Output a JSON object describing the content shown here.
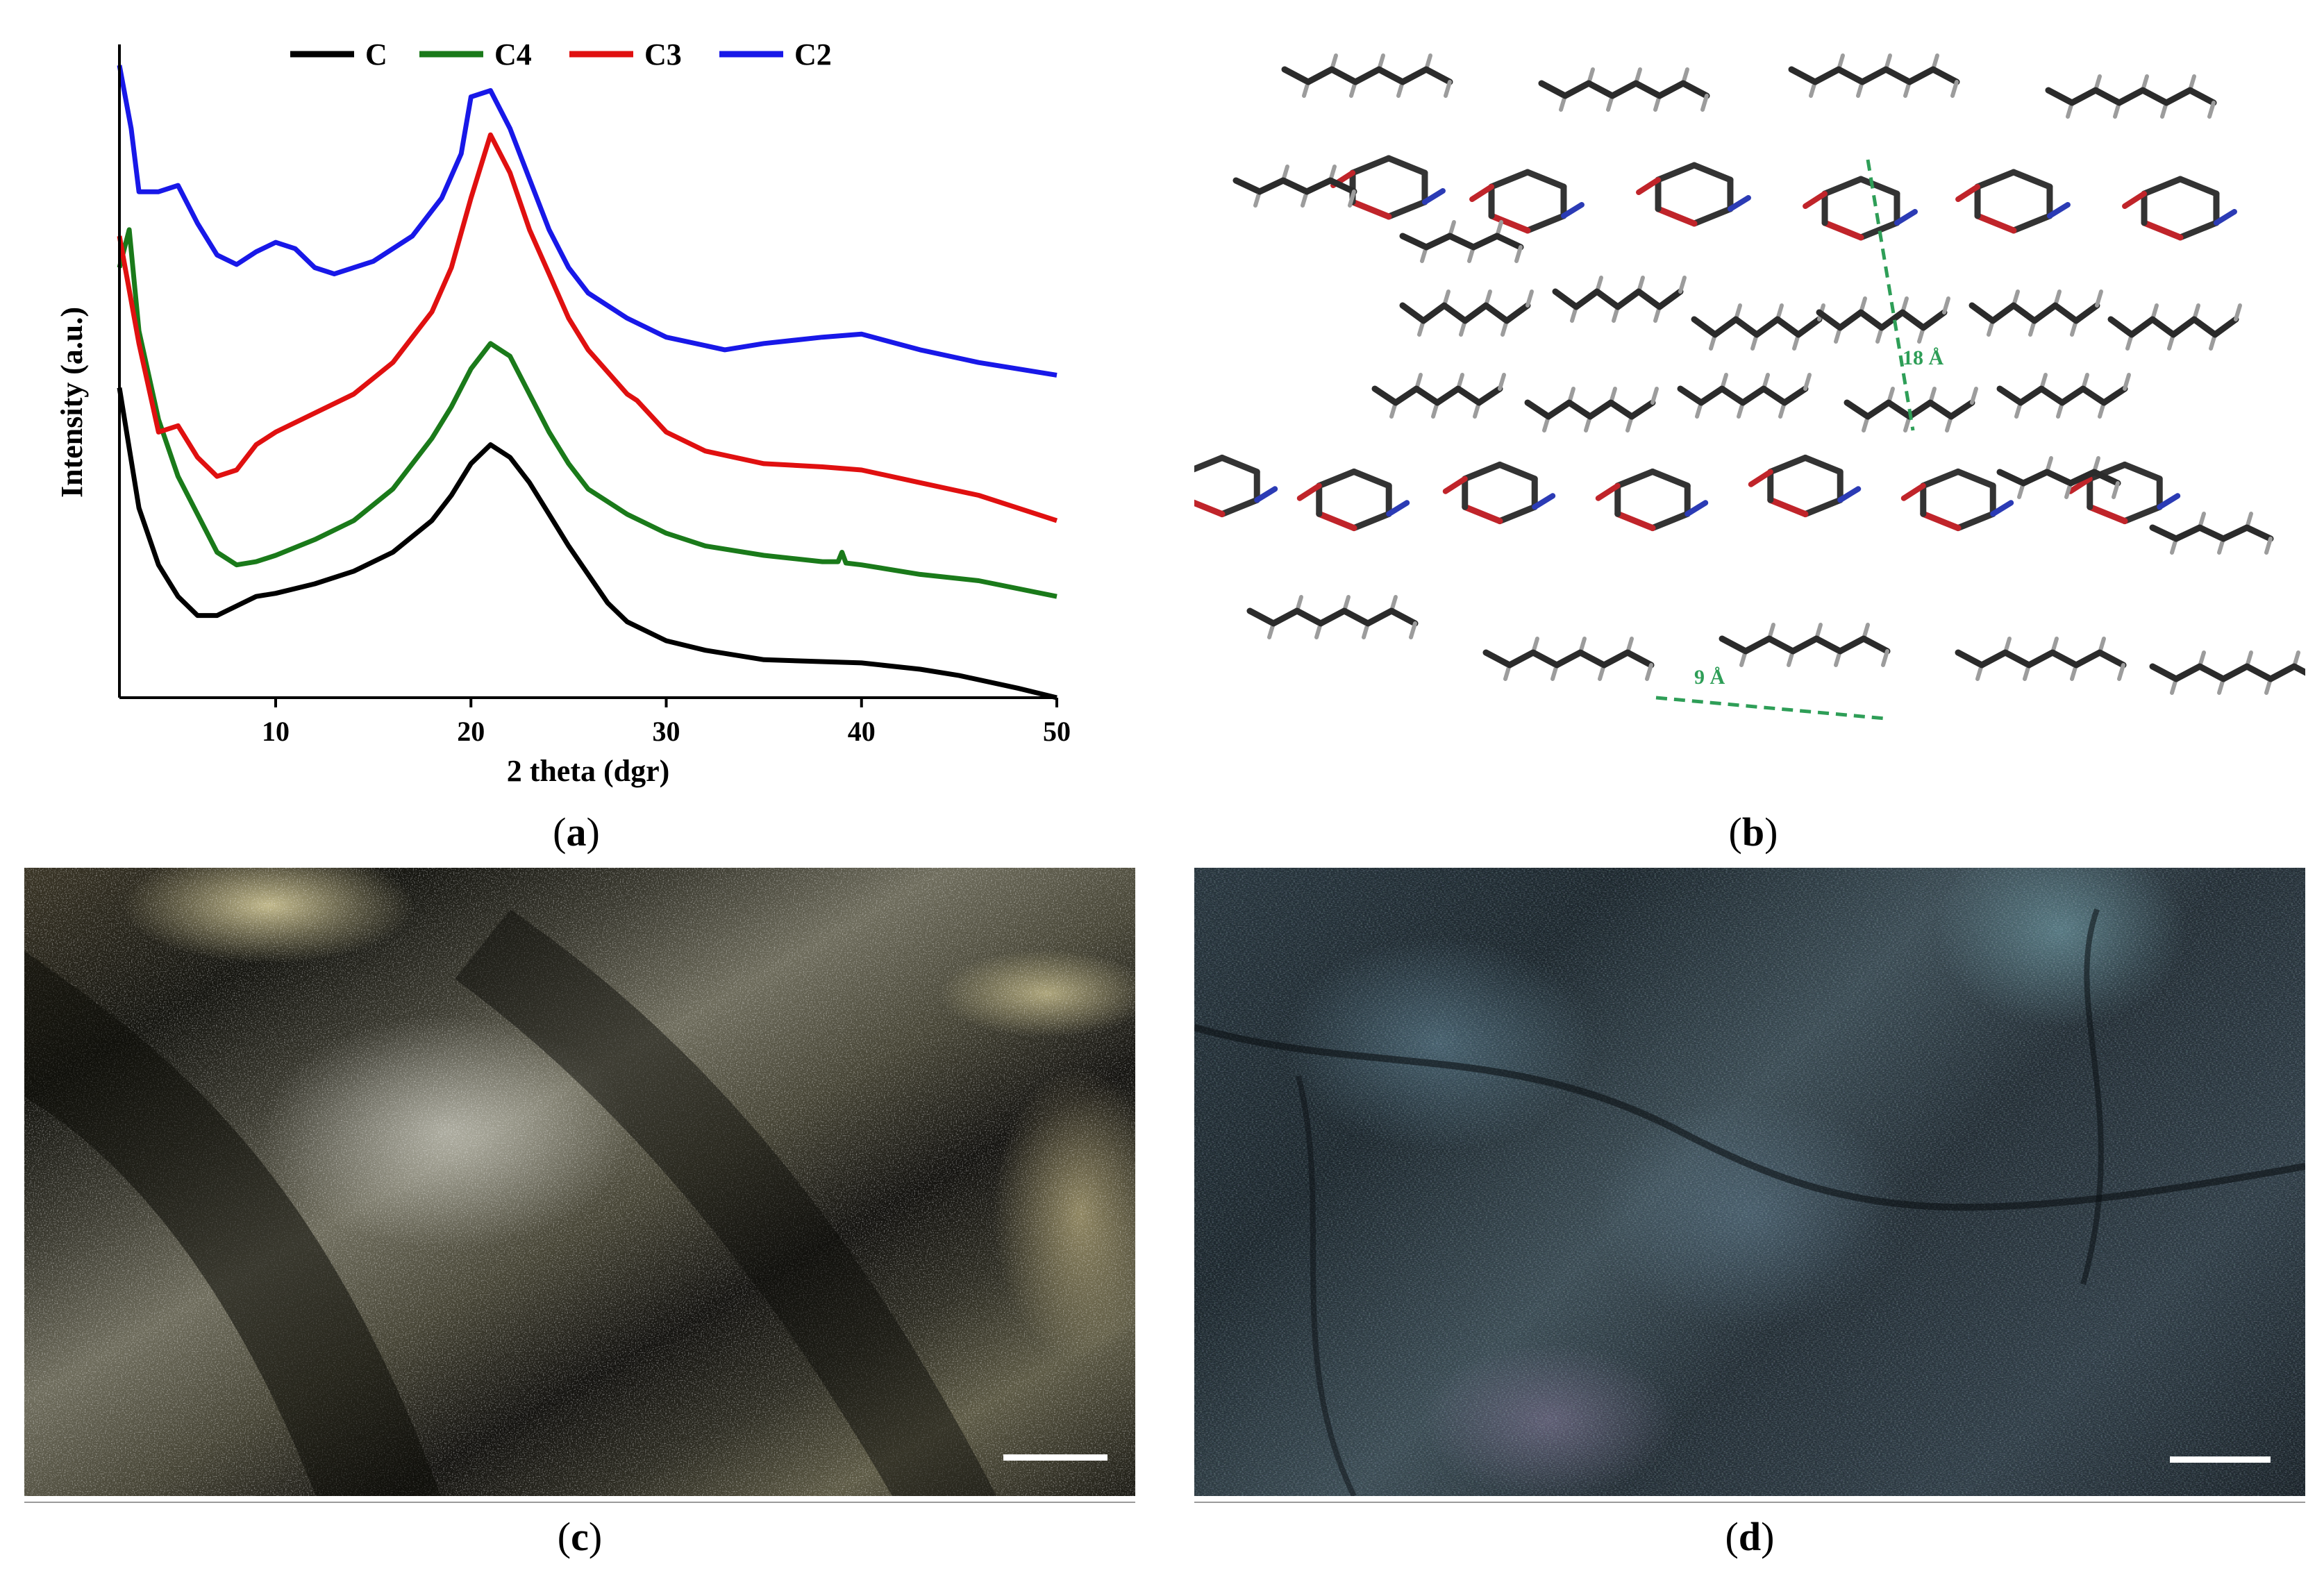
{
  "panel_a": {
    "caption_letter": "a",
    "chart_data": {
      "type": "line",
      "title": "",
      "xlabel": "2 theta (dgr)",
      "ylabel": "Intensity (a.u.)",
      "xlim": [
        2,
        50
      ],
      "ylim": [
        0,
        100
      ],
      "x_ticks": [
        10,
        20,
        30,
        40,
        50
      ],
      "y_ticks_shown": false,
      "grid": false,
      "legend_position": "top",
      "series": [
        {
          "name": "C",
          "color": "#000000",
          "points": [
            [
              2,
              49
            ],
            [
              3,
              30
            ],
            [
              4,
              21
            ],
            [
              5,
              16
            ],
            [
              6,
              13
            ],
            [
              7,
              13
            ],
            [
              8,
              14.5
            ],
            [
              9,
              16
            ],
            [
              10,
              16.5
            ],
            [
              12,
              18
            ],
            [
              14,
              20
            ],
            [
              16,
              23
            ],
            [
              18,
              28
            ],
            [
              19,
              32
            ],
            [
              20,
              37
            ],
            [
              21,
              40
            ],
            [
              22,
              38
            ],
            [
              23,
              34
            ],
            [
              24,
              29
            ],
            [
              25,
              24
            ],
            [
              26,
              19.5
            ],
            [
              27,
              15
            ],
            [
              28,
              12
            ],
            [
              30,
              9
            ],
            [
              32,
              7.5
            ],
            [
              35,
              6
            ],
            [
              40,
              5.5
            ],
            [
              43,
              4.5
            ],
            [
              45,
              3.5
            ],
            [
              48,
              1.5
            ],
            [
              50,
              0
            ]
          ]
        },
        {
          "name": "C4",
          "color": "#1a7a1a",
          "points": [
            [
              2,
              68
            ],
            [
              2.5,
              74
            ],
            [
              3,
              58
            ],
            [
              4,
              44
            ],
            [
              5,
              35
            ],
            [
              6,
              29
            ],
            [
              7,
              23
            ],
            [
              8,
              21
            ],
            [
              9,
              21.5
            ],
            [
              10,
              22.5
            ],
            [
              12,
              25
            ],
            [
              14,
              28
            ],
            [
              16,
              33
            ],
            [
              18,
              41
            ],
            [
              19,
              46
            ],
            [
              20,
              52
            ],
            [
              21,
              56
            ],
            [
              22,
              54
            ],
            [
              23,
              48
            ],
            [
              24,
              42
            ],
            [
              25,
              37
            ],
            [
              26,
              33
            ],
            [
              28,
              29
            ],
            [
              30,
              26
            ],
            [
              32,
              24
            ],
            [
              35,
              22.5
            ],
            [
              38,
              21.5
            ],
            [
              38.8,
              21.5
            ],
            [
              39,
              23
            ],
            [
              39.2,
              21.3
            ],
            [
              40,
              21
            ],
            [
              43,
              19.5
            ],
            [
              46,
              18.5
            ],
            [
              50,
              16
            ]
          ]
        },
        {
          "name": "C3",
          "color": "#e01010",
          "points": [
            [
              2,
              73
            ],
            [
              3,
              56
            ],
            [
              4,
              42
            ],
            [
              5,
              43
            ],
            [
              6,
              38
            ],
            [
              7,
              35
            ],
            [
              8,
              36
            ],
            [
              9,
              40
            ],
            [
              10,
              42
            ],
            [
              12,
              45
            ],
            [
              14,
              48
            ],
            [
              16,
              53
            ],
            [
              18,
              61
            ],
            [
              19,
              68
            ],
            [
              20,
              79
            ],
            [
              21,
              89
            ],
            [
              22,
              83
            ],
            [
              23,
              74
            ],
            [
              24,
              67
            ],
            [
              25,
              60
            ],
            [
              26,
              55
            ],
            [
              28,
              48
            ],
            [
              28.5,
              47
            ],
            [
              30,
              42
            ],
            [
              32,
              39
            ],
            [
              35,
              37
            ],
            [
              38,
              36.5
            ],
            [
              40,
              36
            ],
            [
              43,
              34
            ],
            [
              46,
              32
            ],
            [
              50,
              28
            ]
          ]
        },
        {
          "name": "C2",
          "color": "#1818e8",
          "points": [
            [
              2,
              100
            ],
            [
              2.6,
              90
            ],
            [
              3,
              80
            ],
            [
              4,
              80
            ],
            [
              5,
              81
            ],
            [
              6,
              75
            ],
            [
              7,
              70
            ],
            [
              8,
              68.5
            ],
            [
              9,
              70.5
            ],
            [
              10,
              72
            ],
            [
              11,
              71
            ],
            [
              12,
              68
            ],
            [
              13,
              67
            ],
            [
              15,
              69
            ],
            [
              17,
              73
            ],
            [
              18.5,
              79
            ],
            [
              19.5,
              86
            ],
            [
              20,
              95
            ],
            [
              21,
              96
            ],
            [
              22,
              90
            ],
            [
              23,
              82
            ],
            [
              24,
              74
            ],
            [
              25,
              68
            ],
            [
              26,
              64
            ],
            [
              28,
              60
            ],
            [
              30,
              57
            ],
            [
              33,
              55
            ],
            [
              35,
              56
            ],
            [
              38,
              57
            ],
            [
              40,
              57.5
            ],
            [
              43,
              55
            ],
            [
              46,
              53
            ],
            [
              50,
              51
            ]
          ]
        }
      ]
    }
  },
  "panel_b": {
    "caption_letter": "b",
    "annotations": [
      "18 Å",
      "9 Å"
    ]
  },
  "panel_c": {
    "caption_letter": "c"
  },
  "panel_d": {
    "caption_letter": "d"
  }
}
